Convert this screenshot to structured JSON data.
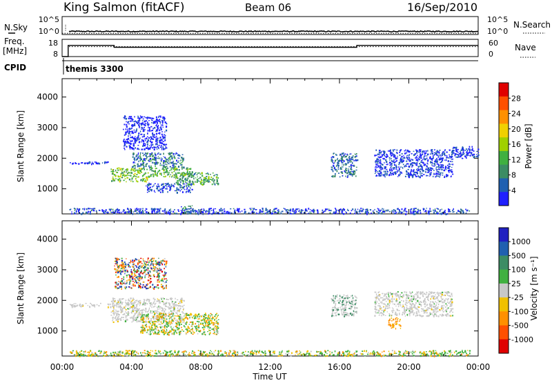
{
  "header": {
    "site": "King Salmon (fitACF)",
    "beam": "Beam 06",
    "date": "16/Sep/2010"
  },
  "left_labels": {
    "nsky": "N.Sky",
    "freq": "Freq.",
    "freq_unit": "[MHz]",
    "cpid": "CPID"
  },
  "right_labels": {
    "nsearch": "N.Search",
    "nave": "Nave"
  },
  "cpid_text": "themis 3300",
  "noise_ticks_left": [
    "10^5",
    "10^0"
  ],
  "noise_ticks_right": [
    "10^5",
    "10^0"
  ],
  "freq_ticks": [
    "18",
    "8"
  ],
  "nave_ticks": [
    "60",
    "0"
  ],
  "colors": {
    "grey": "#c8c8c8",
    "power_scale": [
      "#2020ff",
      "#2060b0",
      "#3c8c64",
      "#40b040",
      "#a0d000",
      "#f0d000",
      "#ff9000",
      "#ff5000",
      "#e00000"
    ],
    "velocity_scale": [
      "#2020c0",
      "#2060b0",
      "#3c8c64",
      "#40b040",
      "#c8c8c8",
      "#f0c000",
      "#ff9000",
      "#ff5000",
      "#e00000"
    ]
  },
  "chart_data": [
    {
      "type": "line",
      "name": "noise",
      "series": [
        {
          "name": "N.Sky",
          "x": [
            0,
            0.5,
            3,
            6,
            9,
            12,
            15,
            18,
            21,
            24
          ],
          "y": [
            0.6,
            0.8,
            0.8,
            0.9,
            0.8,
            0.8,
            0.8,
            0.8,
            0.8,
            0.8
          ]
        },
        {
          "name": "N.Search",
          "x": [
            0,
            24
          ],
          "y": [
            0.3,
            0.3
          ]
        }
      ],
      "ylabel": "N.Sky",
      "yticks": [
        "10^5",
        "10^0"
      ]
    },
    {
      "type": "line",
      "name": "frequency",
      "series": [
        {
          "name": "Freq.",
          "x": [
            0,
            0.35,
            0.35,
            3.0,
            3.0,
            17.0,
            17.0,
            24
          ],
          "y": [
            8,
            8,
            14.5,
            14.5,
            13.4,
            13.4,
            14.5,
            14.5
          ]
        },
        {
          "name": "Nave",
          "x": [
            0,
            24
          ],
          "y": [
            25,
            25
          ]
        }
      ],
      "ylabel": "Freq. [MHz]",
      "yticks": [
        "18",
        "8"
      ]
    },
    {
      "type": "heatmap",
      "name": "power",
      "xlabel": "Time UT",
      "ylabel": "Slant Range [km]",
      "x_range": [
        "00:00",
        "24:00"
      ],
      "ylim": [
        180,
        4600
      ],
      "xticks": [
        "00:00",
        "04:00",
        "08:00",
        "12:00",
        "16:00",
        "20:00",
        "00:00"
      ],
      "yticks": [
        1000,
        2000,
        3000,
        4000
      ],
      "colorbar": {
        "label": "Power [dB]",
        "ticks": [
          4,
          8,
          12,
          16,
          20,
          24,
          28
        ]
      },
      "regions": [
        {
          "t": [
            0.4,
            2.7
          ],
          "r": [
            1830,
            1900
          ],
          "p": 4
        },
        {
          "t": [
            2.8,
            5.0
          ],
          "r": [
            1250,
            1700
          ],
          "p": 18
        },
        {
          "t": [
            4.0,
            7.0
          ],
          "r": [
            1700,
            2200
          ],
          "p": 10
        },
        {
          "t": [
            5.0,
            7.5
          ],
          "r": [
            1400,
            1700
          ],
          "p": 16
        },
        {
          "t": [
            6.5,
            9.0
          ],
          "r": [
            1150,
            1550
          ],
          "p": 14
        },
        {
          "t": [
            4.8,
            7.5
          ],
          "r": [
            900,
            1200
          ],
          "p": 6
        },
        {
          "t": [
            3.5,
            6.0
          ],
          "r": [
            2300,
            3400
          ],
          "p": 3
        },
        {
          "t": [
            6.8,
            7.6
          ],
          "r": [
            200,
            480
          ],
          "p": 10
        },
        {
          "t": [
            0.4,
            23.5
          ],
          "r": [
            200,
            380
          ],
          "p": 6
        },
        {
          "t": [
            15.5,
            17.0
          ],
          "r": [
            1400,
            2200
          ],
          "p": 9
        },
        {
          "t": [
            18.0,
            22.5
          ],
          "r": [
            1400,
            2300
          ],
          "p": 5
        },
        {
          "t": [
            22.5,
            24.0
          ],
          "r": [
            2000,
            2400
          ],
          "p": 5
        }
      ]
    },
    {
      "type": "heatmap",
      "name": "velocity",
      "xlabel": "Time UT",
      "ylabel": "Slant Range [km]",
      "x_range": [
        "00:00",
        "24:00"
      ],
      "ylim": [
        180,
        4600
      ],
      "xticks": [
        "00:00",
        "04:00",
        "08:00",
        "12:00",
        "16:00",
        "20:00",
        "00:00"
      ],
      "yticks": [
        1000,
        2000,
        3000,
        4000
      ],
      "colorbar": {
        "label": "Velocity [m s⁻¹]",
        "ticks": [
          "1000",
          "500",
          "100",
          "25",
          "-25",
          "-100",
          "-500",
          "-1000"
        ]
      },
      "regions": [
        {
          "t": [
            0.4,
            3.0
          ],
          "r": [
            1800,
            1920
          ],
          "v": "grey"
        },
        {
          "t": [
            2.8,
            7.0
          ],
          "r": [
            1300,
            2100
          ],
          "v": "grey"
        },
        {
          "t": [
            4.5,
            9.0
          ],
          "r": [
            900,
            1600
          ],
          "v": "green-orange"
        },
        {
          "t": [
            3.0,
            6.0
          ],
          "r": [
            2400,
            3400
          ],
          "v": "mixed"
        },
        {
          "t": [
            0.4,
            23.5
          ],
          "r": [
            200,
            380
          ],
          "v": "green-orange"
        },
        {
          "t": [
            15.5,
            17.0
          ],
          "r": [
            1500,
            2200
          ],
          "v": "grey-green"
        },
        {
          "t": [
            18.0,
            22.5
          ],
          "r": [
            1500,
            2300
          ],
          "v": "grey"
        },
        {
          "t": [
            18.8,
            19.5
          ],
          "r": [
            1100,
            1450
          ],
          "v": "orange"
        }
      ]
    }
  ]
}
